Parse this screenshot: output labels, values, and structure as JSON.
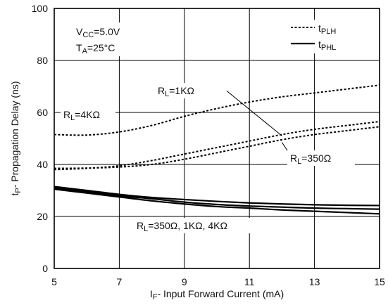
{
  "chart_data": {
    "type": "line",
    "title": "",
    "xlabel": {
      "main": "I",
      "sub": "F",
      "rest": "- Input Forward Current (mA)"
    },
    "ylabel": {
      "main": "t",
      "sub": "P",
      "rest": "- Propagation Delay (ns)"
    },
    "xlim": [
      5,
      15
    ],
    "ylim": [
      0,
      100
    ],
    "xticks": [
      "5",
      "7",
      "9",
      "11",
      "13",
      "15"
    ],
    "yticks": [
      "0",
      "20",
      "40",
      "60",
      "80",
      "100"
    ],
    "grid": true,
    "conditions": [
      {
        "main": "V",
        "sub": "CC",
        "rest": "=5.0V"
      },
      {
        "main": "T",
        "sub": "A",
        "rest": "=25°C"
      }
    ],
    "legend": {
      "placement": "top-right",
      "entries": [
        {
          "main": "t",
          "sub": "PLH",
          "style": "dotted"
        },
        {
          "main": "t",
          "sub": "PHL",
          "style": "solid"
        }
      ]
    },
    "series": [
      {
        "style": "dotted",
        "x": [
          5,
          6,
          7,
          8,
          9,
          10,
          11,
          12,
          13,
          14,
          15
        ],
        "values": [
          51.5,
          51.3,
          52.5,
          55.0,
          58.5,
          61.5,
          64.0,
          66.0,
          67.5,
          69.0,
          70.5
        ]
      },
      {
        "style": "dotted",
        "x": [
          5,
          6,
          7,
          8,
          9,
          10,
          11,
          12,
          13,
          14,
          15
        ],
        "values": [
          38.0,
          38.5,
          39.5,
          41.5,
          44.0,
          46.5,
          49.0,
          51.5,
          53.5,
          55.0,
          56.5
        ]
      },
      {
        "style": "dotted",
        "x": [
          5,
          6,
          7,
          8,
          9,
          10,
          11,
          12,
          13,
          14,
          15
        ],
        "values": [
          38.5,
          38.6,
          39.0,
          40.0,
          42.0,
          44.5,
          47.0,
          49.5,
          51.5,
          53.0,
          54.5
        ]
      },
      {
        "style": "solid",
        "x": [
          5,
          6,
          7,
          8,
          9,
          10,
          11,
          12,
          13,
          14,
          15
        ],
        "values": [
          31.5,
          30.0,
          28.5,
          27.3,
          26.5,
          25.8,
          25.2,
          24.8,
          24.5,
          24.3,
          24.2
        ]
      },
      {
        "style": "solid",
        "x": [
          5,
          6,
          7,
          8,
          9,
          10,
          11,
          12,
          13,
          14,
          15
        ],
        "values": [
          31.0,
          29.5,
          28.0,
          26.8,
          25.5,
          24.6,
          24.0,
          23.6,
          23.2,
          23.0,
          22.8
        ]
      },
      {
        "style": "solid",
        "x": [
          5,
          6,
          7,
          8,
          9,
          10,
          11,
          12,
          13,
          14,
          15
        ],
        "values": [
          30.5,
          29.0,
          27.5,
          26.0,
          24.8,
          23.8,
          23.2,
          22.5,
          22.0,
          21.5,
          21.0
        ]
      }
    ],
    "annotations": [
      {
        "id": "rl-1k",
        "main": "R",
        "sub": "L",
        "rest": "=1KΩ",
        "leader": {
          "from": [
            10.3,
            68.3
          ],
          "to": [
            12.0,
            51.0
          ]
        }
      },
      {
        "id": "rl-4k",
        "main": "R",
        "sub": "L",
        "rest": "=4KΩ",
        "leader": null
      },
      {
        "id": "rl-350",
        "main": "R",
        "sub": "L",
        "rest": "=350Ω",
        "leader": {
          "from": [
            12.3,
            42.8
          ],
          "to": [
            12.0,
            48.5
          ]
        }
      },
      {
        "id": "rl-phl",
        "main": "R",
        "sub": "L",
        "rest": "=350Ω, 1KΩ, 4KΩ",
        "leader": null
      }
    ]
  }
}
